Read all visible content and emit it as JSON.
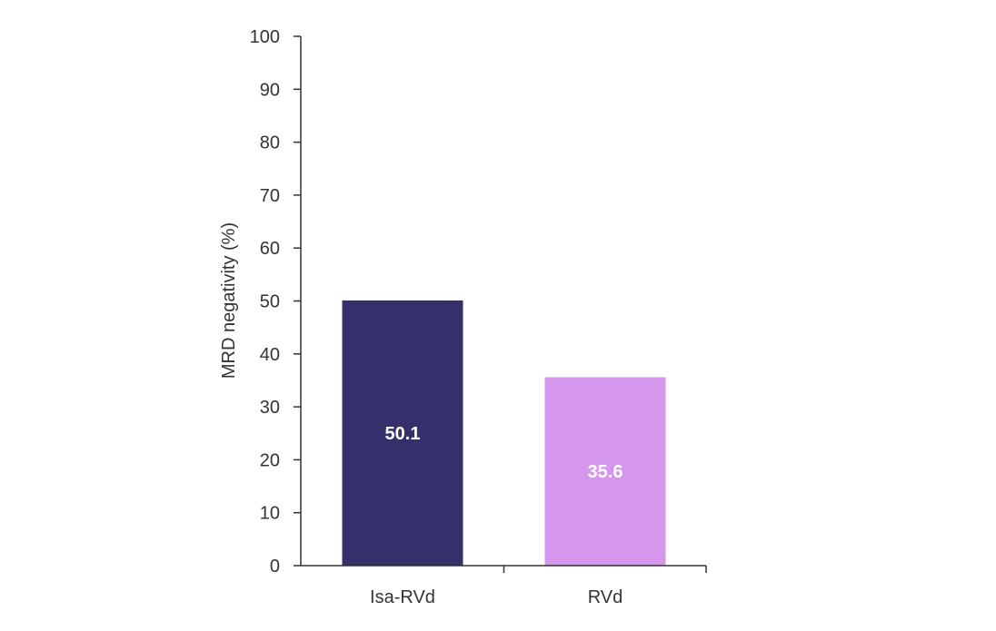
{
  "chart_data": {
    "type": "bar",
    "categories": [
      "Isa-RVd",
      "RVd"
    ],
    "values": [
      50.1,
      35.6
    ],
    "data_labels": [
      "50.1",
      "35.6"
    ],
    "colors": [
      "#35306b",
      "#d597ee"
    ],
    "title": "",
    "xlabel": "",
    "ylabel": "MRD negativity (%)",
    "ylim": [
      0,
      100
    ],
    "yticks": [
      0,
      10,
      20,
      30,
      40,
      50,
      60,
      70,
      80,
      90,
      100
    ],
    "grid": false,
    "legend": "none"
  }
}
